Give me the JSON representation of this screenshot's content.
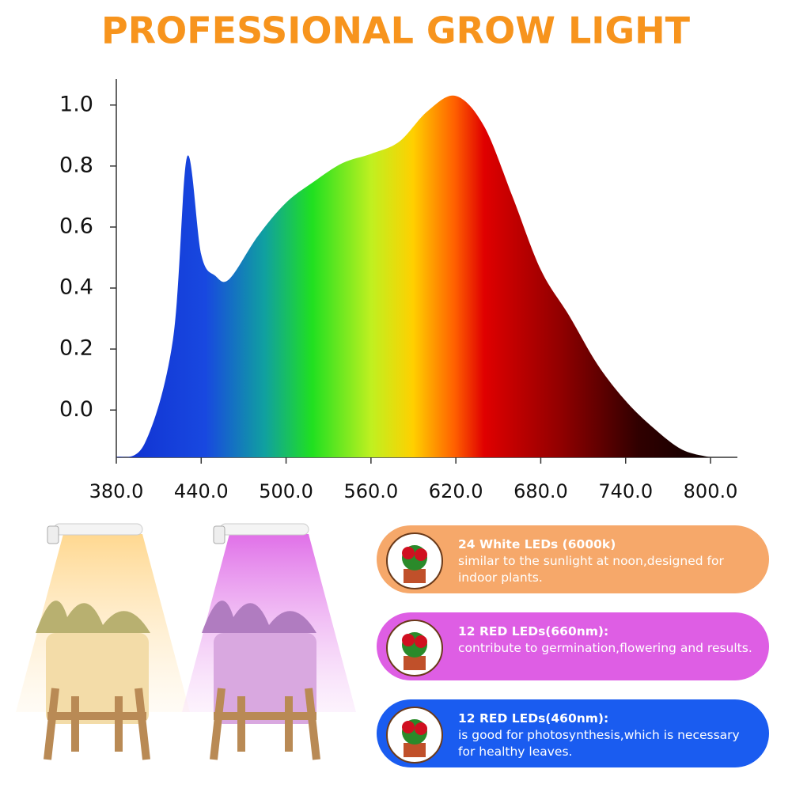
{
  "chart_data": {
    "type": "area",
    "title": "PROFESSIONAL GROW LIGHT",
    "x": [
      380,
      400,
      420,
      430,
      440,
      450,
      460,
      480,
      500,
      520,
      540,
      560,
      580,
      600,
      620,
      640,
      660,
      680,
      700,
      720,
      740,
      760,
      780,
      800
    ],
    "values": [
      -0.155,
      -0.11,
      0.23,
      0.83,
      0.51,
      0.44,
      0.43,
      0.57,
      0.68,
      0.75,
      0.81,
      0.84,
      0.88,
      0.98,
      1.03,
      0.93,
      0.7,
      0.46,
      0.31,
      0.15,
      0.03,
      -0.06,
      -0.13,
      -0.155
    ],
    "xlim": [
      380,
      819
    ],
    "ylim": [
      -0.155,
      1.085
    ],
    "xticks": [
      {
        "value": 380,
        "label": "380.0"
      },
      {
        "value": 440,
        "label": "440.0"
      },
      {
        "value": 500,
        "label": "500.0"
      },
      {
        "value": 560,
        "label": "560.0"
      },
      {
        "value": 620,
        "label": "620.0"
      },
      {
        "value": 680,
        "label": "680.0"
      },
      {
        "value": 740,
        "label": "740.0"
      },
      {
        "value": 800,
        "label": "800.0"
      }
    ],
    "yticks": [
      {
        "value": 0,
        "label": "0.0"
      },
      0.2,
      0.4,
      0.6,
      0.8,
      {
        "value": 1,
        "label": "1.0"
      }
    ]
  },
  "panels": [
    {
      "heading": "24 White LEDs  (6000k)",
      "text": "similar to the sunlight at noon,designed for indoor plants."
    },
    {
      "heading": "12 RED LEDs(660nm):",
      "text": "contribute to germination,flowering and results."
    },
    {
      "heading": "12 RED LEDs(460nm):",
      "text": "is good for photosynthesis,which is necessary for healthy leaves."
    }
  ]
}
